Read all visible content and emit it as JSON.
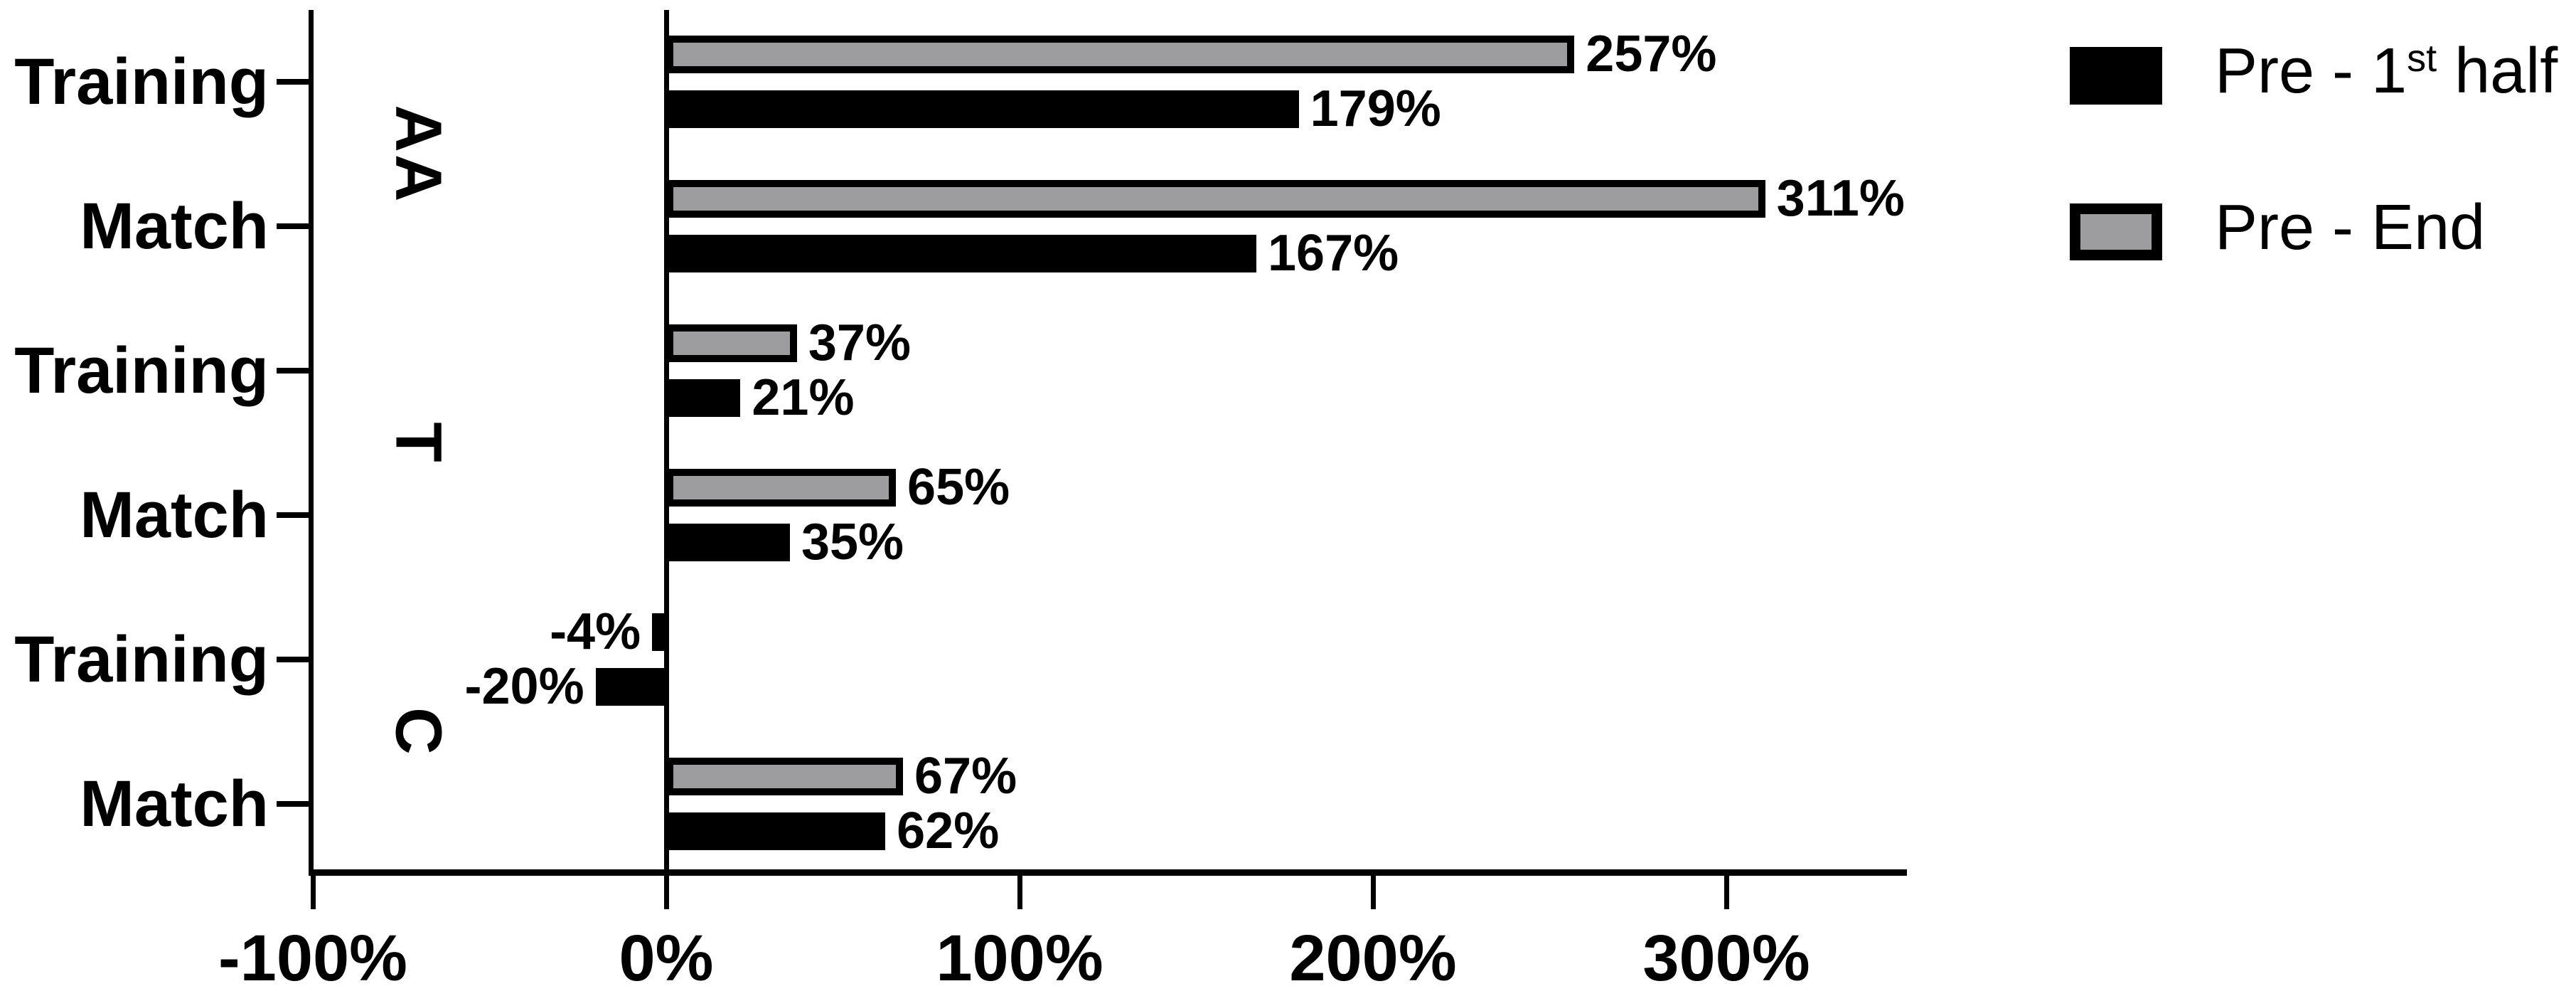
{
  "chart_data": {
    "type": "bar",
    "orientation": "horizontal",
    "title": "",
    "xlabel": "",
    "ylabel": "",
    "xlim": [
      -100,
      351
    ],
    "grid": false,
    "legend_position": "top-right",
    "x_ticks": [
      {
        "value": -100,
        "label": "-100%"
      },
      {
        "value": 0,
        "label": "0%"
      },
      {
        "value": 100,
        "label": "100%"
      },
      {
        "value": 200,
        "label": "200%"
      },
      {
        "value": 300,
        "label": "300%"
      }
    ],
    "series_info": [
      {
        "key": "pre_first_half",
        "name": "Pre - 1st half",
        "color": "#000000"
      },
      {
        "key": "pre_end",
        "name": "Pre - End",
        "color": "#9d9da0"
      }
    ],
    "groups": [
      {
        "label": "AA",
        "rows": [
          {
            "category": "Training",
            "values": {
              "pre_end": 257,
              "pre_first_half": 179
            },
            "labels": {
              "pre_end": "257%",
              "pre_first_half": "179%"
            }
          },
          {
            "category": "Match",
            "values": {
              "pre_end": 311,
              "pre_first_half": 167
            },
            "labels": {
              "pre_end": "311%",
              "pre_first_half": "167%"
            }
          }
        ]
      },
      {
        "label": "T",
        "rows": [
          {
            "category": "Training",
            "values": {
              "pre_end": 37,
              "pre_first_half": 21
            },
            "labels": {
              "pre_end": "37%",
              "pre_first_half": "21%"
            }
          },
          {
            "category": "Match",
            "values": {
              "pre_end": 65,
              "pre_first_half": 35
            },
            "labels": {
              "pre_end": "65%",
              "pre_first_half": "35%"
            }
          }
        ]
      },
      {
        "label": "C",
        "rows": [
          {
            "category": "Training",
            "values": {
              "pre_end": -4,
              "pre_first_half": -20
            },
            "labels": {
              "pre_end": "-4%",
              "pre_first_half": "-20%"
            }
          },
          {
            "category": "Match",
            "values": {
              "pre_end": 67,
              "pre_first_half": 62
            },
            "labels": {
              "pre_end": "67%",
              "pre_first_half": "62%"
            }
          }
        ]
      }
    ],
    "legend": [
      {
        "prefix": "Pre - 1",
        "sup": "st",
        "suffix": " half",
        "fill": "#000000",
        "border": "#000000"
      },
      {
        "prefix": "Pre - End",
        "sup": "",
        "suffix": "",
        "fill": "#9d9da0",
        "border": "#000000"
      }
    ],
    "colors": {
      "bar_black": "#000000",
      "bar_gray": "#9d9da0",
      "axis": "#000000",
      "background": "#ffffff"
    }
  }
}
